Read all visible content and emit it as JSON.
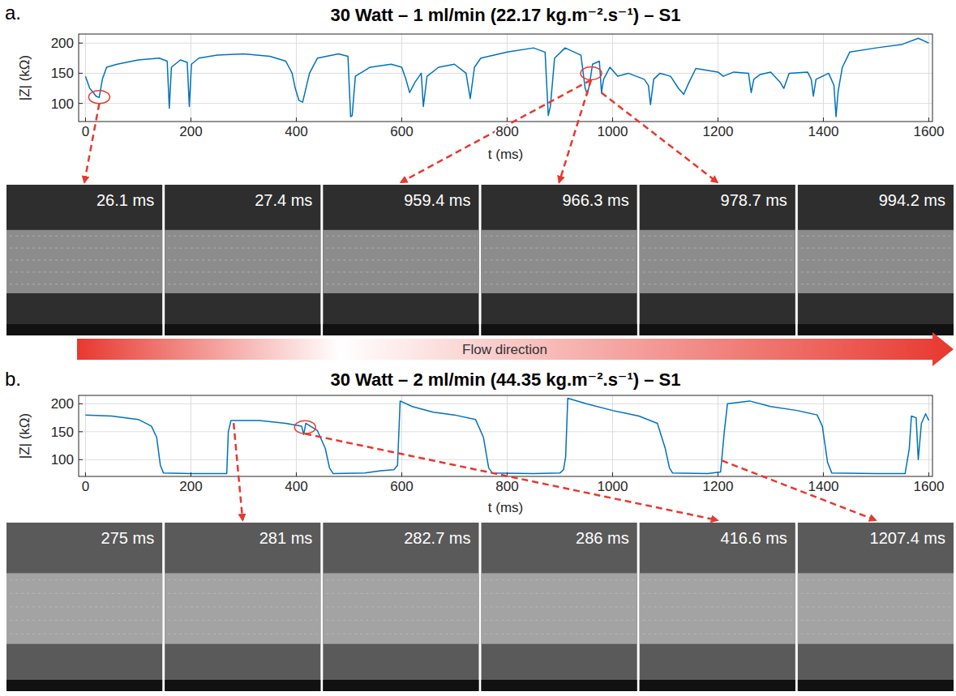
{
  "chart_data": [
    {
      "type": "line",
      "label": "a.",
      "title": "30 Watt – 1 ml/min (22.17 kg.m⁻².s⁻¹) – S1",
      "x_label": "t (ms)",
      "y_label": "|Z| (kΩ)",
      "xlim": [
        -13,
        1607
      ],
      "ylim": [
        70,
        215
      ],
      "xticks": [
        0,
        200,
        400,
        600,
        800,
        1000,
        1200,
        1400,
        1600
      ],
      "yticks": [
        100,
        150,
        200
      ],
      "grid": true,
      "color": "#0072bd",
      "marker": "none",
      "line_style": "solid",
      "x": [
        0,
        8,
        15,
        20,
        26,
        32,
        40,
        60,
        100,
        140,
        155,
        159,
        163,
        180,
        193,
        197,
        201,
        215,
        250,
        300,
        350,
        380,
        392,
        398,
        405,
        412,
        425,
        440,
        480,
        498,
        503,
        506,
        512,
        540,
        580,
        600,
        608,
        615,
        625,
        637,
        641,
        648,
        670,
        700,
        722,
        730,
        738,
        750,
        800,
        850,
        872,
        878,
        882,
        890,
        910,
        940,
        948,
        952,
        956,
        962,
        975,
        979,
        983,
        995,
        1010,
        1030,
        1060,
        1068,
        1072,
        1078,
        1090,
        1110,
        1125,
        1135,
        1145,
        1158,
        1200,
        1210,
        1230,
        1258,
        1263,
        1268,
        1280,
        1300,
        1318,
        1325,
        1335,
        1370,
        1377,
        1381,
        1386,
        1410,
        1420,
        1424,
        1428,
        1436,
        1450,
        1500,
        1550,
        1580,
        1600
      ],
      "values": [
        145,
        125,
        118,
        112,
        110,
        140,
        160,
        165,
        172,
        175,
        170,
        92,
        160,
        172,
        168,
        95,
        165,
        175,
        180,
        182,
        178,
        170,
        150,
        125,
        105,
        102,
        150,
        175,
        182,
        178,
        78,
        80,
        145,
        160,
        165,
        160,
        140,
        118,
        135,
        150,
        95,
        145,
        160,
        165,
        150,
        108,
        160,
        175,
        185,
        192,
        185,
        80,
        95,
        175,
        192,
        180,
        125,
        115,
        130,
        165,
        170,
        118,
        140,
        160,
        145,
        150,
        140,
        130,
        98,
        140,
        150,
        145,
        125,
        115,
        135,
        158,
        152,
        145,
        152,
        150,
        118,
        140,
        148,
        152,
        135,
        125,
        150,
        152,
        140,
        112,
        140,
        150,
        130,
        78,
        120,
        160,
        185,
        192,
        198,
        208,
        200
      ],
      "annotations": [
        {
          "x": 26.1,
          "label": "26.1 ms"
        },
        {
          "x": 27.4,
          "label": "27.4 ms"
        },
        {
          "x": 959.4,
          "label": "959.4 ms"
        },
        {
          "x": 966.3,
          "label": "966.3 ms"
        },
        {
          "x": 978.7,
          "label": "978.7 ms"
        },
        {
          "x": 994.2,
          "label": "994.2 ms"
        }
      ]
    },
    {
      "type": "line",
      "label": "b.",
      "title": "30 Watt – 2 ml/min (44.35 kg.m⁻².s⁻¹) – S1",
      "x_label": "t (ms)",
      "y_label": "|Z| (kΩ)",
      "xlim": [
        -13,
        1607
      ],
      "ylim": [
        70,
        215
      ],
      "xticks": [
        0,
        200,
        400,
        600,
        800,
        1000,
        1200,
        1400,
        1600
      ],
      "yticks": [
        100,
        150,
        200
      ],
      "grid": true,
      "color": "#0072bd",
      "marker": "none",
      "line_style": "solid",
      "x": [
        0,
        50,
        100,
        125,
        135,
        142,
        148,
        200,
        250,
        268,
        271,
        276,
        330,
        380,
        410,
        414,
        418,
        440,
        455,
        463,
        470,
        530,
        560,
        585,
        592,
        597,
        620,
        660,
        700,
        740,
        755,
        765,
        772,
        850,
        900,
        907,
        911,
        915,
        950,
        1000,
        1050,
        1085,
        1100,
        1108,
        1114,
        1180,
        1205,
        1212,
        1218,
        1260,
        1300,
        1350,
        1388,
        1398,
        1408,
        1416,
        1500,
        1555,
        1563,
        1567,
        1576,
        1580,
        1586,
        1594,
        1600
      ],
      "values": [
        180,
        178,
        172,
        160,
        140,
        90,
        76,
        75,
        75,
        75,
        150,
        170,
        170,
        165,
        160,
        145,
        165,
        152,
        120,
        85,
        75,
        76,
        80,
        82,
        90,
        205,
        195,
        185,
        180,
        172,
        140,
        85,
        76,
        75,
        76,
        82,
        105,
        210,
        200,
        188,
        178,
        165,
        120,
        85,
        76,
        75,
        78,
        150,
        200,
        205,
        195,
        188,
        180,
        160,
        95,
        76,
        75,
        75,
        120,
        178,
        175,
        100,
        165,
        182,
        170
      ],
      "annotations": [
        {
          "x": 275,
          "label": "275 ms"
        },
        {
          "x": 281,
          "label": "281 ms"
        },
        {
          "x": 282.7,
          "label": "282.7 ms"
        },
        {
          "x": 286,
          "label": "286 ms"
        },
        {
          "x": 416.6,
          "label": "416.6 ms"
        },
        {
          "x": 1207.4,
          "label": "1207.4 ms"
        }
      ]
    }
  ],
  "flow_label": "Flow direction"
}
